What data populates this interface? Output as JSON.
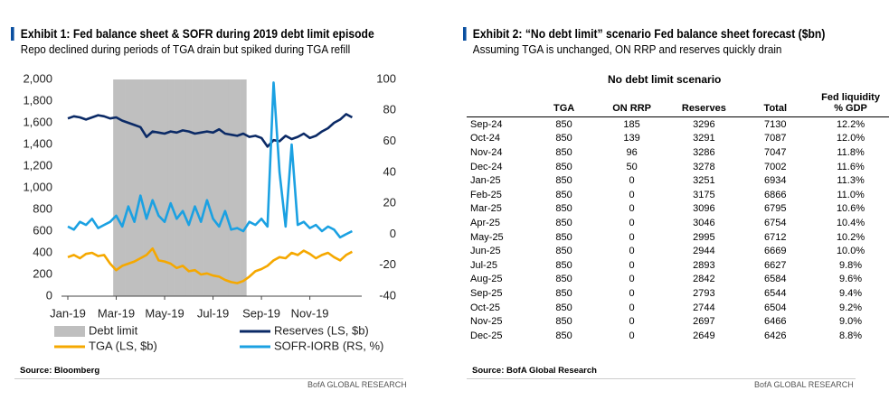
{
  "chart_data": {
    "type": "line",
    "title": "Exhibit 1: Fed balance sheet & SOFR during 2019 debt limit episode",
    "subtitle": "Repo declined during periods of TGA drain but spiked during TGA refill",
    "categories": [
      "Jan-19",
      null,
      null,
      null,
      null,
      null,
      null,
      null,
      "Mar-19",
      null,
      null,
      null,
      null,
      null,
      null,
      null,
      "May-19",
      null,
      null,
      null,
      null,
      null,
      null,
      null,
      "Jul-19",
      null,
      null,
      null,
      null,
      null,
      null,
      null,
      "Sep-19",
      null,
      null,
      null,
      null,
      null,
      null,
      null,
      "Nov-19",
      null,
      null,
      null,
      null,
      null,
      null,
      null
    ],
    "series": [
      {
        "name": "Debt limit",
        "type": "area",
        "color": "#bfbfbf",
        "values": [
          null,
          null,
          null,
          null,
          null,
          null,
          null,
          null,
          2000,
          2000,
          2000,
          2000,
          2000,
          2000,
          2000,
          2000,
          2000,
          2000,
          2000,
          2000,
          2000,
          2000,
          2000,
          2000,
          2000,
          2000,
          2000,
          2000,
          2000,
          2000,
          null,
          null,
          null,
          null,
          null,
          null,
          null,
          null,
          null,
          null,
          null,
          null,
          null,
          null,
          null,
          null,
          null,
          null
        ]
      },
      {
        "name": "Reserves (LS, $b)",
        "color": "#0b2a66",
        "values": [
          1640,
          1660,
          1650,
          1630,
          1650,
          1670,
          1660,
          1640,
          1650,
          1620,
          1600,
          1580,
          1560,
          1470,
          1520,
          1510,
          1500,
          1520,
          1510,
          1530,
          1520,
          1500,
          1510,
          1520,
          1510,
          1540,
          1500,
          1490,
          1480,
          1500,
          1470,
          1480,
          1460,
          1380,
          1440,
          1430,
          1480,
          1450,
          1470,
          1500,
          1460,
          1480,
          1520,
          1550,
          1600,
          1630,
          1680,
          1650
        ]
      },
      {
        "name": "TGA (LS, $b)",
        "color": "#f5a800",
        "values": [
          360,
          380,
          350,
          390,
          400,
          370,
          380,
          300,
          240,
          280,
          300,
          320,
          350,
          380,
          440,
          330,
          320,
          300,
          260,
          280,
          230,
          240,
          200,
          210,
          190,
          180,
          150,
          130,
          120,
          140,
          180,
          230,
          250,
          280,
          330,
          360,
          350,
          400,
          380,
          420,
          390,
          350,
          380,
          400,
          360,
          330,
          380,
          410
        ]
      },
      {
        "name": "SOFR-IORB (RS, %)",
        "color": "#1ba1e2",
        "axis": "y2",
        "values": [
          5,
          3,
          8,
          6,
          10,
          4,
          6,
          8,
          12,
          5,
          18,
          8,
          25,
          10,
          22,
          12,
          8,
          20,
          10,
          15,
          6,
          18,
          8,
          22,
          10,
          5,
          15,
          3,
          4,
          2,
          8,
          6,
          10,
          5,
          98,
          40,
          5,
          58,
          6,
          8,
          4,
          6,
          2,
          5,
          3,
          -2,
          0,
          2
        ]
      }
    ],
    "ylim": [
      0,
      2000
    ],
    "yticks": [
      0,
      200,
      400,
      600,
      800,
      {
        "value": 1000,
        "label": "1,000"
      },
      {
        "value": 1200,
        "label": "1,200"
      },
      {
        "value": 1400,
        "label": "1,400"
      },
      {
        "value": 1600,
        "label": "1,600"
      },
      {
        "value": 1800,
        "label": "1,800"
      },
      {
        "value": 2000,
        "label": "2,000"
      }
    ],
    "y2lim": [
      -40,
      100
    ],
    "y2ticks": [
      -40,
      -20,
      0,
      20,
      40,
      60,
      80,
      100
    ],
    "source": "Source: Bloomberg",
    "credit": "BofA GLOBAL RESEARCH"
  },
  "table": {
    "title": "Exhibit 2: “No debt limit” scenario Fed balance sheet forecast ($bn)",
    "subtitle": "Assuming TGA is unchanged, ON RRP and reserves quickly drain",
    "heading": "No debt limit scenario",
    "columns": [
      "TGA",
      "ON RRP",
      "Reserves",
      "Total",
      "Fed liquidity % GDP"
    ],
    "rows": [
      [
        "Sep-24",
        "850",
        "185",
        "3296",
        "7130",
        "12.2%"
      ],
      [
        "Oct-24",
        "850",
        "139",
        "3291",
        "7087",
        "12.0%"
      ],
      [
        "Nov-24",
        "850",
        "96",
        "3286",
        "7047",
        "11.8%"
      ],
      [
        "Dec-24",
        "850",
        "50",
        "3278",
        "7002",
        "11.6%"
      ],
      [
        "Jan-25",
        "850",
        "0",
        "3251",
        "6934",
        "11.3%"
      ],
      [
        "Feb-25",
        "850",
        "0",
        "3175",
        "6866",
        "11.0%"
      ],
      [
        "Mar-25",
        "850",
        "0",
        "3096",
        "6795",
        "10.6%"
      ],
      [
        "Apr-25",
        "850",
        "0",
        "3046",
        "6754",
        "10.4%"
      ],
      [
        "May-25",
        "850",
        "0",
        "2995",
        "6712",
        "10.2%"
      ],
      [
        "Jun-25",
        "850",
        "0",
        "2944",
        "6669",
        "10.0%"
      ],
      [
        "Jul-25",
        "850",
        "0",
        "2893",
        "6627",
        "9.8%"
      ],
      [
        "Aug-25",
        "850",
        "0",
        "2842",
        "6584",
        "9.6%"
      ],
      [
        "Sep-25",
        "850",
        "0",
        "2793",
        "6544",
        "9.4%"
      ],
      [
        "Oct-25",
        "850",
        "0",
        "2744",
        "6504",
        "9.2%"
      ],
      [
        "Nov-25",
        "850",
        "0",
        "2697",
        "6466",
        "9.0%"
      ],
      [
        "Dec-25",
        "850",
        "0",
        "2649",
        "6426",
        "8.8%"
      ]
    ],
    "source": "Source: BofA Global Research",
    "credit": "BofA GLOBAL RESEARCH"
  }
}
